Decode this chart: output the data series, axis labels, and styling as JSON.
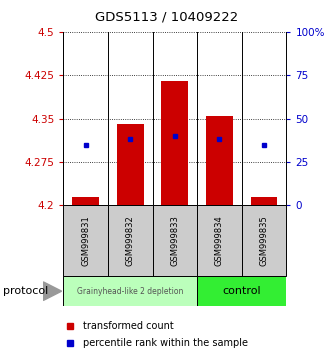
{
  "title": "GDS5113 / 10409222",
  "samples": [
    "GSM999831",
    "GSM999832",
    "GSM999833",
    "GSM999834",
    "GSM999835"
  ],
  "bar_bottoms": [
    4.2,
    4.2,
    4.2,
    4.2,
    4.2
  ],
  "bar_tops": [
    4.215,
    4.34,
    4.415,
    4.355,
    4.215
  ],
  "percentile_values": [
    4.305,
    4.315,
    4.32,
    4.315,
    4.305
  ],
  "ylim_left": [
    4.2,
    4.5
  ],
  "ylim_right": [
    0,
    100
  ],
  "yticks_left": [
    4.2,
    4.275,
    4.35,
    4.425,
    4.5
  ],
  "yticks_right": [
    0,
    25,
    50,
    75,
    100
  ],
  "ytick_labels_left": [
    "4.2",
    "4.275",
    "4.35",
    "4.425",
    "4.5"
  ],
  "ytick_labels_right": [
    "0",
    "25",
    "50",
    "75",
    "100%"
  ],
  "bar_color": "#cc0000",
  "percentile_color": "#0000cc",
  "group1_label": "Grainyhead-like 2 depletion",
  "group2_label": "control",
  "group1_color": "#bbffbb",
  "group2_color": "#33ee33",
  "protocol_label": "protocol",
  "legend_labels": [
    "transformed count",
    "percentile rank within the sample"
  ],
  "background_color": "#ffffff",
  "tick_cell_bg": "#cccccc",
  "fig_width": 3.33,
  "fig_height": 3.54,
  "dpi": 100
}
